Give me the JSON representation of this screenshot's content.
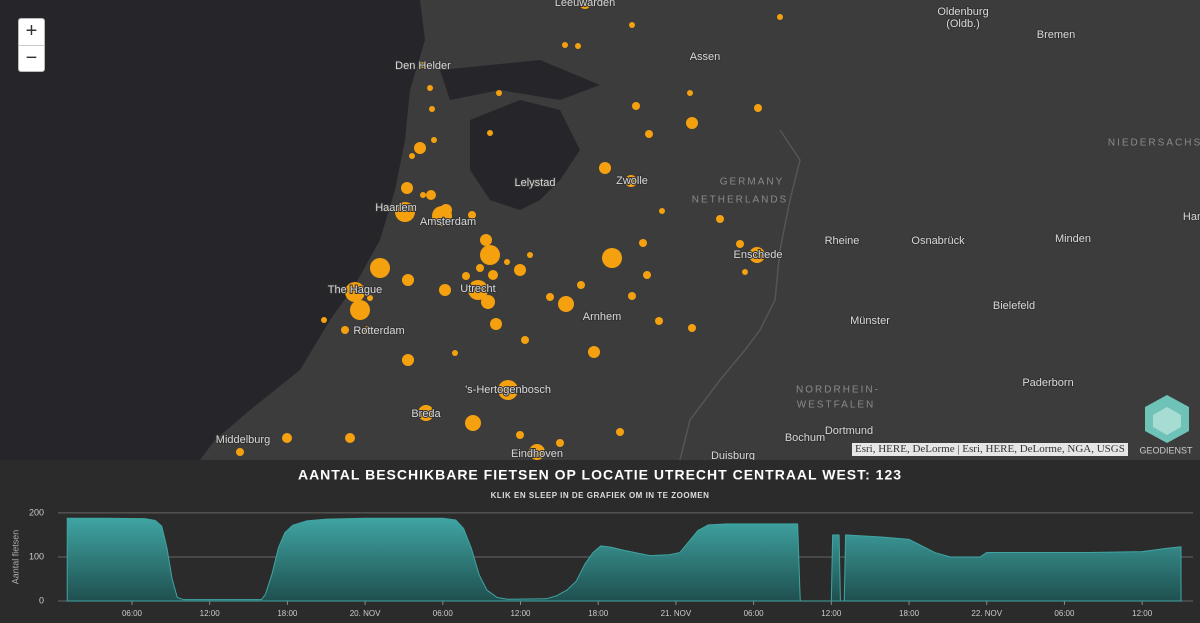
{
  "map": {
    "labels": [
      "Leeuwarden",
      "Oldenburg",
      "(Oldb.)",
      "Bremen",
      "Den Helder",
      "Assen",
      "NIEDERSACHS",
      "Lelystad",
      "Zwolle",
      "GERMANY",
      "NETHERLANDS",
      "Haarlem",
      "Amsterdam",
      "Han",
      "Rheine",
      "Osnabrück",
      "Minden",
      "Enschede",
      "The Hague",
      "Utrecht",
      "Bielefeld",
      "Arnhem",
      "Münster",
      "Rotterdam",
      "'s-Hertogenbosch",
      "NORDRHEIN-",
      "WESTFALEN",
      "Paderborn",
      "Breda",
      "Dortmund",
      "Middelburg",
      "Bochum",
      "Duisburg",
      "Eindhoven"
    ],
    "attribution": "Esri, HERE, DeLorme | Esri, HERE, DeLorme, NGA, USGS",
    "logo": "GEODIENST",
    "zoom_in": "+",
    "zoom_out": "−"
  },
  "chart_data": {
    "type": "area",
    "title": "AANTAL BESCHIKBARE FIETSEN OP LOCATIE UTRECHT CENTRAAL WEST: 123",
    "subtitle": "KLIK EN SLEEP IN DE GRAFIEK OM IN TE ZOOMEN",
    "ylabel": "Aantal fietsen",
    "color": "#3fa5a3",
    "x": [
      1,
      4,
      7,
      7.8,
      8.3,
      8.7,
      9.1,
      9.5,
      10,
      16,
      16.3,
      16.8,
      17.3,
      17.8,
      18.4,
      19.5,
      21,
      24,
      28,
      30,
      31,
      31.6,
      32.2,
      32.8,
      33.4,
      34.2,
      35,
      38,
      38.8,
      39.6,
      40.3,
      41,
      41.6,
      42.2,
      43,
      44,
      46,
      47.5,
      48.3,
      49,
      49.7,
      50.5,
      52,
      57.4,
      57.6,
      60,
      60.1,
      60.6,
      60.7,
      61,
      61.1,
      64,
      66,
      68,
      69.2,
      71.5,
      72,
      80,
      84,
      86,
      87
    ],
    "values": [
      188,
      188,
      187,
      183,
      170,
      120,
      50,
      8,
      3,
      3,
      15,
      60,
      120,
      155,
      172,
      182,
      186,
      188,
      188,
      188,
      184,
      165,
      120,
      60,
      25,
      8,
      4,
      5,
      12,
      25,
      45,
      85,
      110,
      125,
      122,
      115,
      103,
      105,
      110,
      135,
      160,
      173,
      175,
      175,
      0,
      0,
      150,
      150,
      0,
      0,
      150,
      145,
      140,
      110,
      100,
      100,
      110,
      110,
      112,
      120,
      123
    ],
    "xlim": [
      1.06,
      87
    ],
    "xticks": [
      {
        "value": 6,
        "label": "06:00"
      },
      {
        "value": 12,
        "label": "12:00"
      },
      {
        "value": 18,
        "label": "18:00"
      },
      {
        "value": 24,
        "label": "20. NOV"
      },
      {
        "value": 30,
        "label": "06:00"
      },
      {
        "value": 36,
        "label": "12:00"
      },
      {
        "value": 42,
        "label": "18:00"
      },
      {
        "value": 48,
        "label": "21. NOV"
      },
      {
        "value": 54,
        "label": "06:00"
      },
      {
        "value": 60,
        "label": "12:00"
      },
      {
        "value": 66,
        "label": "18:00"
      },
      {
        "value": 72,
        "label": "22. NOV"
      },
      {
        "value": 78,
        "label": "06:00"
      },
      {
        "value": 84,
        "label": "12:00"
      }
    ],
    "ylim": [
      0,
      218
    ],
    "yticks": [
      0,
      100,
      200
    ],
    "grid": true
  }
}
